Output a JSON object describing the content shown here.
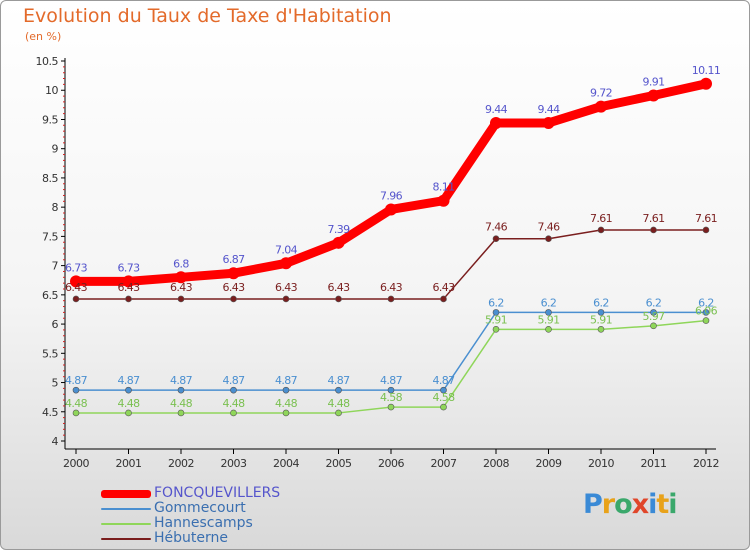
{
  "header": {
    "title": "Evolution du Taux de Taxe d'Habitation",
    "subtitle": "(en %)"
  },
  "logo": {
    "text": "Proxiti",
    "letters": [
      {
        "ch": "P",
        "color": "#3a8ad6"
      },
      {
        "ch": "r",
        "color": "#e8a21a"
      },
      {
        "ch": "o",
        "color": "#3aa86b"
      },
      {
        "ch": "x",
        "color": "#e0462a"
      },
      {
        "ch": "i",
        "color": "#3a8ad6"
      },
      {
        "ch": "t",
        "color": "#e8a21a"
      },
      {
        "ch": "i",
        "color": "#3aa86b"
      }
    ]
  },
  "chart_data": {
    "type": "line",
    "title": "Evolution du Taux de Taxe d'Habitation",
    "subtitle": "(en %)",
    "x": [
      "2000",
      "2001",
      "2002",
      "2003",
      "2004",
      "2005",
      "2006",
      "2007",
      "2008",
      "2009",
      "2010",
      "2011",
      "2012"
    ],
    "y_ticks": [
      "4",
      "4.5",
      "5",
      "5.5",
      "6",
      "6.5",
      "7",
      "7.5",
      "8",
      "8.5",
      "9",
      "9.5",
      "10",
      "10.5"
    ],
    "ylim": [
      4,
      10.5
    ],
    "grid": false,
    "legend_position": "bottom-left",
    "series": [
      {
        "name": "FONCQUEVILLERS",
        "color": "#ff0000",
        "label_color": "#5555cc",
        "values": [
          6.73,
          6.73,
          6.8,
          6.87,
          7.04,
          7.39,
          7.96,
          8.11,
          9.44,
          9.44,
          9.72,
          9.91,
          10.11
        ],
        "labels": [
          "6.73",
          "6.73",
          "6.8",
          "6.87",
          "7.04",
          "7.39",
          "7.96",
          "8.11",
          "9.44",
          "9.44",
          "9.72",
          "9.91",
          "10.11"
        ]
      },
      {
        "name": "Gommecourt",
        "color": "#4a8fd0",
        "label_color": "#4a8fd0",
        "values": [
          4.87,
          4.87,
          4.87,
          4.87,
          4.87,
          4.87,
          4.87,
          4.87,
          6.2,
          6.2,
          6.2,
          6.2,
          6.2
        ],
        "labels": [
          "4.87",
          "4.87",
          "4.87",
          "4.87",
          "4.87",
          "4.87",
          "4.87",
          "4.87",
          "6.2",
          "6.2",
          "6.2",
          "6.2",
          "6.2"
        ]
      },
      {
        "name": "Hannescamps",
        "color": "#8fd65a",
        "label_color": "#7ac050",
        "values": [
          4.48,
          4.48,
          4.48,
          4.48,
          4.48,
          4.48,
          4.58,
          4.58,
          5.91,
          5.91,
          5.91,
          5.97,
          6.06
        ],
        "labels": [
          "4.48",
          "4.48",
          "4.48",
          "4.48",
          "4.48",
          "4.48",
          "4.58",
          "4.58",
          "5.91",
          "5.91",
          "5.91",
          "5.97",
          "6.06"
        ]
      },
      {
        "name": "Hébuterne",
        "color": "#7a1e1e",
        "label_color": "#7a1e1e",
        "values": [
          6.43,
          6.43,
          6.43,
          6.43,
          6.43,
          6.43,
          6.43,
          6.43,
          7.46,
          7.46,
          7.61,
          7.61,
          7.61
        ],
        "labels": [
          "6.43",
          "6.43",
          "6.43",
          "6.43",
          "6.43",
          "6.43",
          "6.43",
          "6.43",
          "7.46",
          "7.46",
          "7.61",
          "7.61",
          "7.61"
        ]
      }
    ]
  },
  "legend": {
    "items": [
      {
        "label": "FONCQUEVILLERS",
        "color": "#ff0000",
        "text_color": "#5555cc"
      },
      {
        "label": "Gommecourt",
        "color": "#4a8fd0",
        "text_color": "#3a6fb0"
      },
      {
        "label": "Hannescamps",
        "color": "#8fd65a",
        "text_color": "#3a6fb0"
      },
      {
        "label": "Hébuterne",
        "color": "#7a1e1e",
        "text_color": "#3a6fb0"
      }
    ]
  }
}
